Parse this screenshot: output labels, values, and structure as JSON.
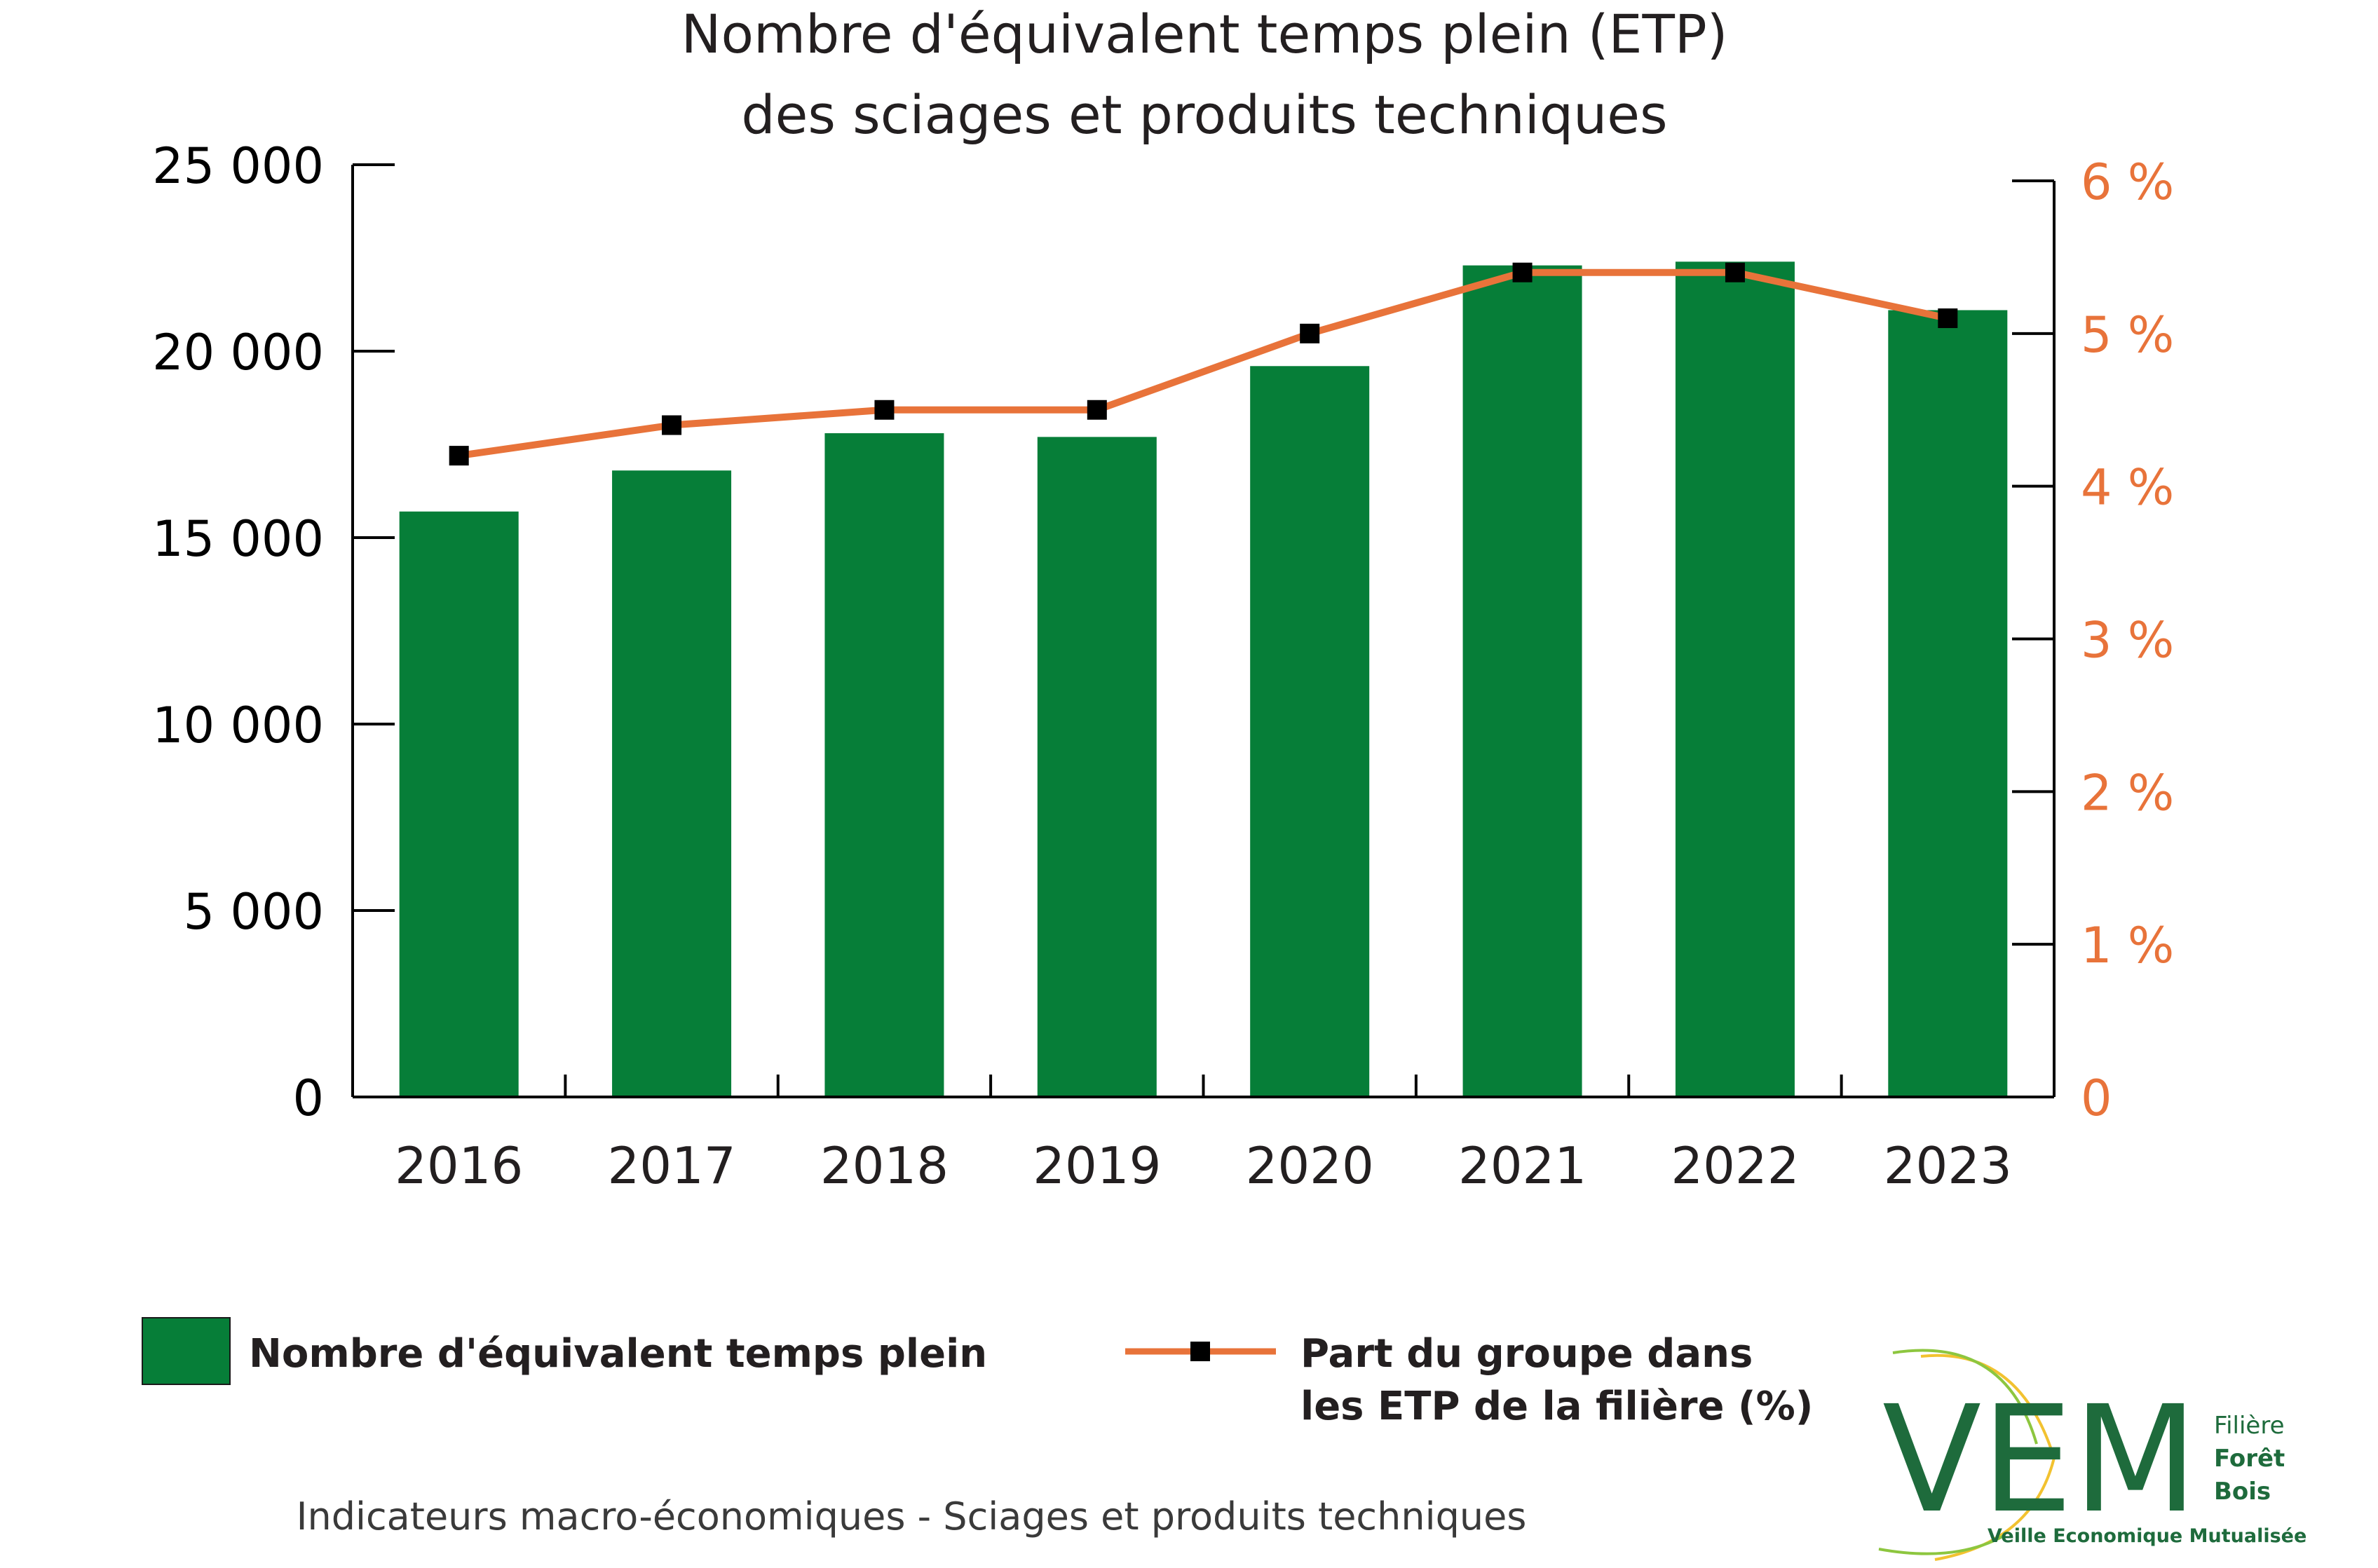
{
  "chart_data": {
    "type": "bar",
    "title_lines": [
      "Nombre d'équivalent temps plein (ETP)",
      "des sciages et produits techniques"
    ],
    "categories": [
      "2016",
      "2017",
      "2018",
      "2019",
      "2020",
      "2021",
      "2022",
      "2023"
    ],
    "series": [
      {
        "name": "Nombre d'équivalent temps plein",
        "type": "bar",
        "axis": "left",
        "color": "#067e38",
        "values": [
          15700,
          16800,
          17800,
          17700,
          19600,
          22300,
          22400,
          21100
        ]
      },
      {
        "name": "Part du groupe dans les ETP de la filière (%)",
        "type": "line",
        "axis": "right",
        "color": "#e8733a",
        "marker_color": "#000000",
        "values": [
          4.2,
          4.4,
          4.5,
          4.5,
          5.0,
          5.4,
          5.4,
          5.1
        ]
      }
    ],
    "y_left": {
      "ylim": [
        0,
        25000
      ],
      "ticks": [
        0,
        5000,
        10000,
        15000,
        20000,
        25000
      ],
      "tick_labels": [
        "0",
        "5 000",
        "10 000",
        "15 000",
        "20 000",
        "25 000"
      ]
    },
    "y_right": {
      "ylim": [
        0,
        6
      ],
      "ticks": [
        0,
        1,
        2,
        3,
        4,
        5,
        6
      ],
      "tick_labels": [
        "0",
        "1 %",
        "2 %",
        "3 %",
        "4 %",
        "5 %",
        "6 %"
      ]
    },
    "grid": false,
    "legend_position": "bottom"
  },
  "legend": {
    "bar_label": "Nombre d'équivalent temps plein",
    "line_label_1": "Part du groupe dans",
    "line_label_2": "les ETP de la filière  (%)"
  },
  "footer": "Indicateurs macro-économiques - Sciages et produits techniques",
  "logo": {
    "letters": "VEM",
    "line1": "Filière",
    "line2": "Forêt",
    "line3": "Bois",
    "tagline": "Veille Economique Mutualisée"
  }
}
